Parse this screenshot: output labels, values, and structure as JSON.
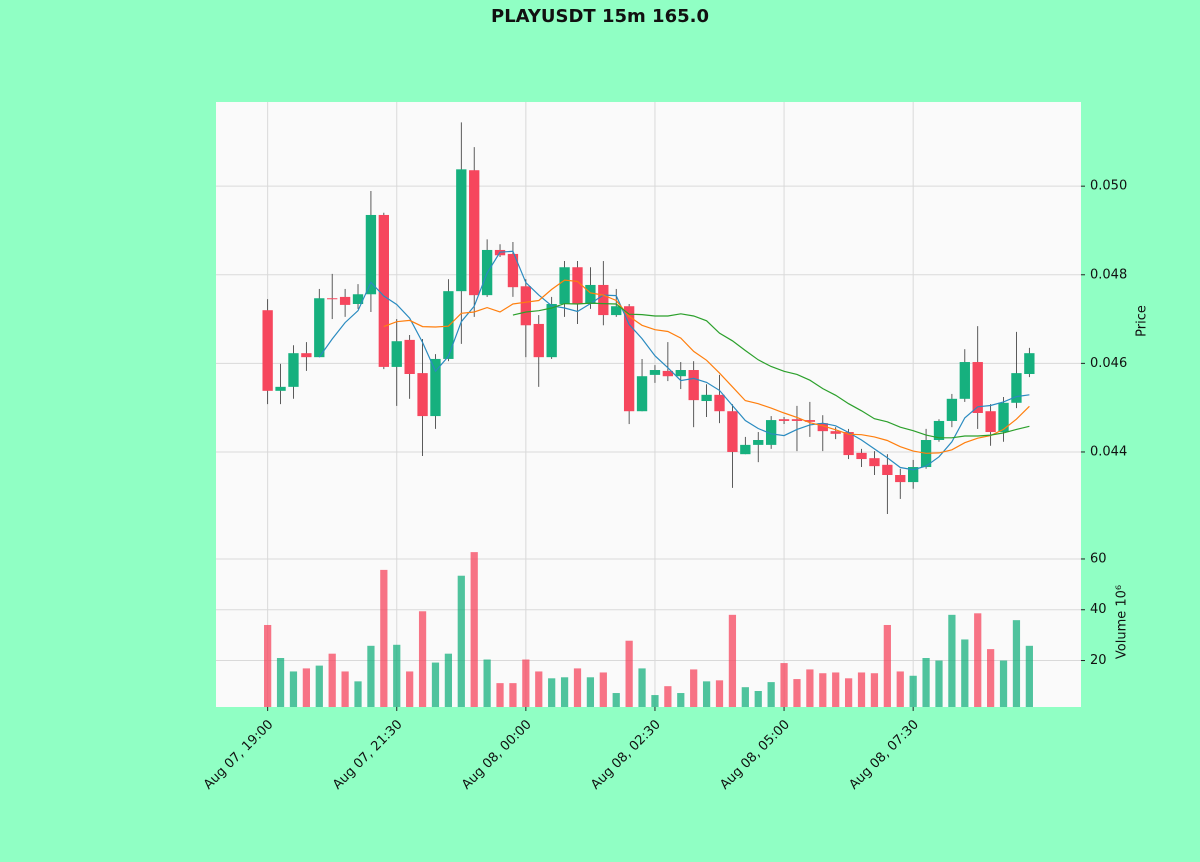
{
  "chart_data": {
    "type": "candlestick",
    "title": "PLAYUSDT 15m 165.0",
    "ylabel": "Price",
    "volume_label": "Volume 10⁶",
    "xlim": [
      -4,
      63
    ],
    "xticks": [
      {
        "value": 0,
        "label": "Aug 07, 19:00"
      },
      {
        "value": 10,
        "label": "Aug 07, 21:30"
      },
      {
        "value": 20,
        "label": "Aug 08, 00:00"
      },
      {
        "value": 30,
        "label": "Aug 08, 02:30"
      },
      {
        "value": 40,
        "label": "Aug 08, 05:00"
      },
      {
        "value": 50,
        "label": "Aug 08, 07:30"
      }
    ],
    "ylim": [
      0.0419,
      0.0519
    ],
    "yticks": [
      0.044,
      0.046,
      0.048,
      {
        "value": 0.05,
        "label": "0.050"
      }
    ],
    "volume_ylim": [
      1.7,
      65.5
    ],
    "volume_yticks": [
      20,
      40,
      60
    ],
    "grid": true,
    "up_color": "#16b07e",
    "down_color": "#f6465d",
    "wick_color": "#333333",
    "open": [
      0.0472,
      0.04538,
      0.04547,
      0.04623,
      0.04614,
      0.04747,
      0.0475,
      0.04734,
      0.04756,
      0.04935,
      0.04592,
      0.04653,
      0.04578,
      0.04481,
      0.0461,
      0.04763,
      0.05036,
      0.04754,
      0.04856,
      0.04847,
      0.04774,
      0.04689,
      0.04614,
      0.04734,
      0.04817,
      0.04734,
      0.04777,
      0.04709,
      0.04729,
      0.04492,
      0.04574,
      0.04583,
      0.04571,
      0.04585,
      0.04515,
      0.04529,
      0.04492,
      0.04395,
      0.04416,
      0.04416,
      0.04474,
      0.04474,
      0.04472,
      0.04465,
      0.04447,
      0.04445,
      0.04398,
      0.04386,
      0.04371,
      0.04348,
      0.04332,
      0.04366,
      0.04427,
      0.0447,
      0.0452,
      0.04603,
      0.04492,
      0.04445,
      0.04511,
      0.04576
    ],
    "high": [
      0.04745,
      0.04599,
      0.04641,
      0.04648,
      0.04768,
      0.04802,
      0.04768,
      0.04779,
      0.04989,
      0.0494,
      0.047,
      0.04664,
      0.04655,
      0.04621,
      0.0479,
      0.05144,
      0.05088,
      0.0488,
      0.04869,
      0.04874,
      0.0479,
      0.04709,
      0.0475,
      0.04831,
      0.04831,
      0.04817,
      0.04831,
      0.04768,
      0.04734,
      0.0461,
      0.04596,
      0.04648,
      0.04603,
      0.04605,
      0.04553,
      0.04574,
      0.04508,
      0.04434,
      0.04445,
      0.04481,
      0.04479,
      0.04504,
      0.04513,
      0.04483,
      0.04456,
      0.04452,
      0.04407,
      0.04402,
      0.04395,
      0.04362,
      0.04382,
      0.04452,
      0.04474,
      0.04531,
      0.04632,
      0.04684,
      0.04508,
      0.04524,
      0.04671,
      0.04635
    ],
    "low": [
      0.04508,
      0.04508,
      0.0452,
      0.04583,
      0.04614,
      0.047,
      0.04705,
      0.04723,
      0.04716,
      0.04587,
      0.04504,
      0.0452,
      0.04391,
      0.04452,
      0.04605,
      0.04644,
      0.04705,
      0.0475,
      0.0484,
      0.0475,
      0.04614,
      0.04547,
      0.0461,
      0.04705,
      0.04689,
      0.04723,
      0.04686,
      0.04705,
      0.04463,
      0.04492,
      0.04556,
      0.0456,
      0.04542,
      0.04456,
      0.04479,
      0.04465,
      0.04319,
      0.04395,
      0.04377,
      0.04407,
      0.04463,
      0.04402,
      0.04434,
      0.04402,
      0.04429,
      0.04384,
      0.04366,
      0.04348,
      0.0426,
      0.04294,
      0.04317,
      0.04362,
      0.04423,
      0.04456,
      0.04513,
      0.04452,
      0.04414,
      0.04423,
      0.04499,
      0.04569
    ],
    "close": [
      0.04538,
      0.04547,
      0.04623,
      0.04614,
      0.04747,
      0.04745,
      0.04732,
      0.04756,
      0.04935,
      0.04592,
      0.0465,
      0.04576,
      0.04481,
      0.0461,
      0.04763,
      0.05038,
      0.04754,
      0.04856,
      0.04844,
      0.04772,
      0.04686,
      0.04614,
      0.04734,
      0.04817,
      0.04734,
      0.04777,
      0.04709,
      0.04729,
      0.04492,
      0.04571,
      0.04585,
      0.04571,
      0.04585,
      0.04517,
      0.04529,
      0.04492,
      0.044,
      0.04416,
      0.04427,
      0.04472,
      0.0447,
      0.0447,
      0.04468,
      0.04447,
      0.04441,
      0.04393,
      0.04384,
      0.04368,
      0.04348,
      0.04332,
      0.04366,
      0.04427,
      0.0447,
      0.0452,
      0.04603,
      0.04488,
      0.04445,
      0.04511,
      0.04578,
      0.04623
    ],
    "volume": [
      34,
      21,
      15.7,
      16.9,
      18,
      22.7,
      15.7,
      11.8,
      25.8,
      55.7,
      26.2,
      15.7,
      39.4,
      19.2,
      22.7,
      53.4,
      62.7,
      20.4,
      11.1,
      11.1,
      20.4,
      15.7,
      13,
      13.4,
      16.9,
      13.4,
      15.3,
      7.2,
      27.8,
      16.9,
      6.4,
      9.9,
      7.2,
      16.5,
      11.8,
      12.2,
      38,
      9.5,
      8,
      11.5,
      19,
      12.7,
      16.5,
      15,
      15.3,
      13,
      15.3,
      15,
      34,
      15.7,
      14,
      21,
      20,
      38,
      28.3,
      38.6,
      24.5,
      20,
      35.9,
      25.8
    ],
    "overlays": [
      {
        "color": "#2a8bc0",
        "values": [
          null,
          null,
          null,
          null,
          0.04614,
          0.04655,
          0.04692,
          0.04719,
          0.04783,
          0.04752,
          0.04733,
          0.04702,
          0.04647,
          0.04582,
          0.04616,
          0.04694,
          0.04729,
          0.04804,
          0.04851,
          0.04853,
          0.04782,
          0.04754,
          0.0473,
          0.04725,
          0.04717,
          0.04735,
          0.04754,
          0.04753,
          0.04688,
          0.04656,
          0.04617,
          0.0459,
          0.04561,
          0.04566,
          0.04557,
          0.04539,
          0.04505,
          0.04471,
          0.04453,
          0.04441,
          0.04437,
          0.04451,
          0.04461,
          0.04465,
          0.04459,
          0.04444,
          0.04427,
          0.04407,
          0.04387,
          0.04365,
          0.0436,
          0.04368,
          0.04389,
          0.04423,
          0.04477,
          0.04502,
          0.04505,
          0.04513,
          0.04525,
          0.04529
        ]
      },
      {
        "color": "#ff7f0e",
        "values": [
          null,
          null,
          null,
          null,
          null,
          null,
          null,
          null,
          null,
          0.04683,
          0.04694,
          0.04697,
          0.04683,
          0.04682,
          0.04684,
          0.04713,
          0.04716,
          0.04726,
          0.04716,
          0.04734,
          0.04738,
          0.04742,
          0.04767,
          0.04788,
          0.04785,
          0.04759,
          0.04754,
          0.04742,
          0.04706,
          0.04686,
          0.04676,
          0.04672,
          0.04657,
          0.04627,
          0.04607,
          0.04578,
          0.04547,
          0.04516,
          0.04509,
          0.04499,
          0.04488,
          0.04478,
          0.04466,
          0.04459,
          0.0445,
          0.0444,
          0.04439,
          0.04434,
          0.04426,
          0.04412,
          0.04402,
          0.04397,
          0.04398,
          0.04405,
          0.04421,
          0.04431,
          0.04437,
          0.04451,
          0.04474,
          0.04503
        ]
      },
      {
        "color": "#2ca02c",
        "values": [
          null,
          null,
          null,
          null,
          null,
          null,
          null,
          null,
          null,
          null,
          null,
          null,
          null,
          null,
          null,
          null,
          null,
          null,
          null,
          0.04709,
          0.04716,
          0.04719,
          0.04725,
          0.04735,
          0.04734,
          0.04736,
          0.04735,
          0.04734,
          0.04711,
          0.0471,
          0.04707,
          0.04707,
          0.04712,
          0.04707,
          0.04696,
          0.04668,
          0.04651,
          0.04629,
          0.04608,
          0.04593,
          0.04582,
          0.04575,
          0.04562,
          0.04543,
          0.04528,
          0.04509,
          0.04493,
          0.04475,
          0.04468,
          0.04456,
          0.04448,
          0.04438,
          0.04432,
          0.04432,
          0.04436,
          0.04436,
          0.04438,
          0.04443,
          0.04451,
          0.04458
        ]
      }
    ]
  }
}
